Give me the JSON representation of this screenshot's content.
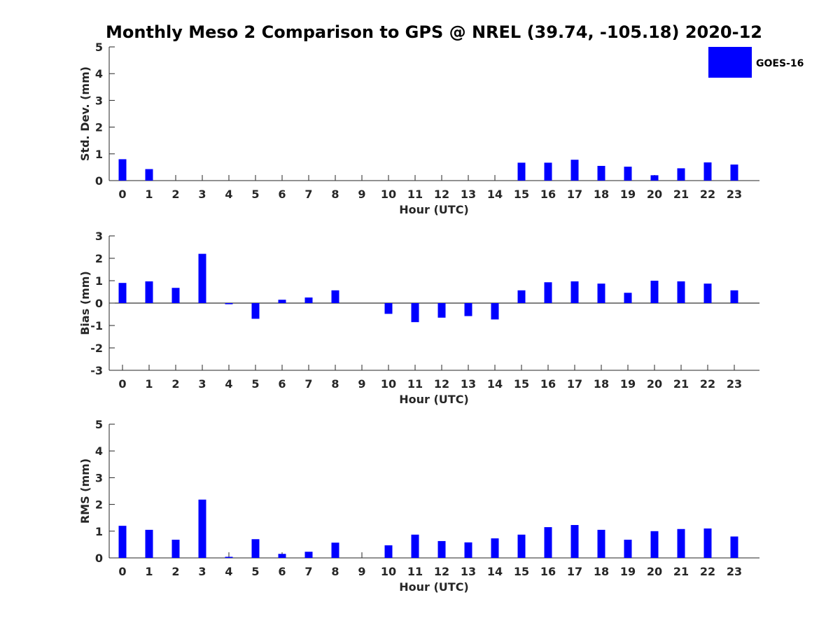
{
  "figure": {
    "title": "Monthly Meso 2 Comparison to GPS @ NREL (39.74, -105.18) 2020-12"
  },
  "legend": {
    "label": "GOES-16",
    "placement": "top-right"
  },
  "colors": {
    "bar": "#0000ff",
    "axis": "#262626"
  },
  "chart_data": [
    {
      "type": "bar",
      "xlabel": "Hour (UTC)",
      "ylabel": "Std. Dev. (mm)",
      "ylim": [
        0,
        5
      ],
      "yticks": [
        "0",
        "1",
        "2",
        "3",
        "4",
        "5"
      ],
      "categories": [
        "0",
        "1",
        "2",
        "3",
        "4",
        "5",
        "6",
        "7",
        "8",
        "9",
        "10",
        "11",
        "12",
        "13",
        "14",
        "15",
        "16",
        "17",
        "18",
        "19",
        "20",
        "21",
        "22",
        "23"
      ],
      "series": [
        {
          "name": "GOES-16",
          "values": [
            0.8,
            0.43,
            0,
            0,
            0,
            0,
            0,
            0,
            0,
            0,
            0,
            0,
            0,
            0,
            0,
            0.67,
            0.67,
            0.78,
            0.55,
            0.52,
            0.2,
            0.46,
            0.68,
            0.6
          ]
        }
      ]
    },
    {
      "type": "bar",
      "xlabel": "Hour (UTC)",
      "ylabel": "Bias (mm)",
      "ylim": [
        -3,
        3
      ],
      "yticks": [
        "-3",
        "-2",
        "-1",
        "0",
        "1",
        "2",
        "3"
      ],
      "categories": [
        "0",
        "1",
        "2",
        "3",
        "4",
        "5",
        "6",
        "7",
        "8",
        "9",
        "10",
        "11",
        "12",
        "13",
        "14",
        "15",
        "16",
        "17",
        "18",
        "19",
        "20",
        "21",
        "22",
        "23"
      ],
      "series": [
        {
          "name": "GOES-16",
          "values": [
            0.9,
            0.97,
            0.68,
            2.2,
            -0.05,
            -0.7,
            0.15,
            0.25,
            0.57,
            0,
            -0.48,
            -0.85,
            -0.65,
            -0.58,
            -0.73,
            0.57,
            0.93,
            0.97,
            0.87,
            0.46,
            1.0,
            0.97,
            0.87,
            0.57
          ]
        }
      ]
    },
    {
      "type": "bar",
      "xlabel": "Hour (UTC)",
      "ylabel": "RMS (mm)",
      "ylim": [
        0,
        5
      ],
      "yticks": [
        "0",
        "1",
        "2",
        "3",
        "4",
        "5"
      ],
      "categories": [
        "0",
        "1",
        "2",
        "3",
        "4",
        "5",
        "6",
        "7",
        "8",
        "9",
        "10",
        "11",
        "12",
        "13",
        "14",
        "15",
        "16",
        "17",
        "18",
        "19",
        "20",
        "21",
        "22",
        "23"
      ],
      "series": [
        {
          "name": "GOES-16",
          "values": [
            1.2,
            1.05,
            0.68,
            2.18,
            0.04,
            0.7,
            0.15,
            0.23,
            0.57,
            0,
            0.47,
            0.87,
            0.63,
            0.58,
            0.73,
            0.87,
            1.15,
            1.23,
            1.05,
            0.68,
            1.0,
            1.08,
            1.1,
            0.8
          ]
        }
      ]
    }
  ]
}
